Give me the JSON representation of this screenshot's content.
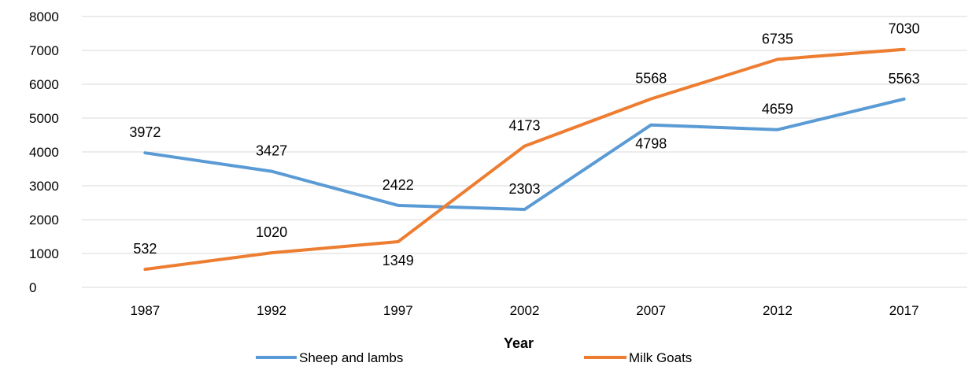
{
  "chart_data": {
    "type": "line",
    "title": "",
    "xlabel": "Year",
    "ylabel": "",
    "categories": [
      "1987",
      "1992",
      "1997",
      "2002",
      "2007",
      "2012",
      "2017"
    ],
    "ylim": [
      0,
      8000
    ],
    "yticks": [
      0,
      1000,
      2000,
      3000,
      4000,
      5000,
      6000,
      7000,
      8000
    ],
    "grid": true,
    "legend_position": "bottom",
    "series": [
      {
        "name": "Sheep and lambs",
        "color": "#5b9bd5",
        "values": [
          3972,
          3427,
          2422,
          2303,
          4798,
          4659,
          5563
        ],
        "labels": [
          "3972",
          "3427",
          "2422",
          "2303",
          "4798",
          "4659",
          "5563"
        ]
      },
      {
        "name": "Milk Goats",
        "color": "#ed7d31",
        "values": [
          532,
          1020,
          1349,
          4173,
          5568,
          6735,
          7030
        ],
        "labels": [
          "532",
          "1020",
          "1349",
          "4173",
          "5568",
          "6735",
          "7030"
        ]
      }
    ]
  }
}
